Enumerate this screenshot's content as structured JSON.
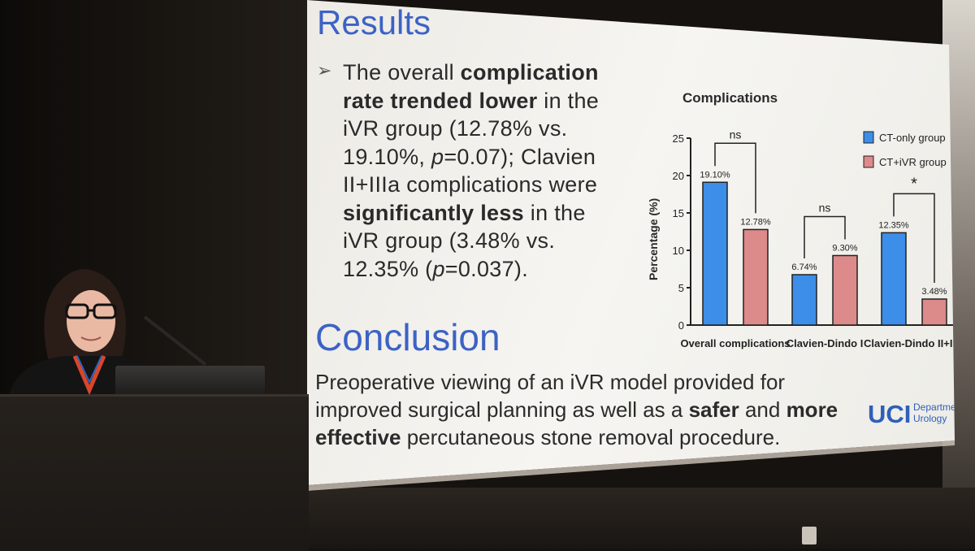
{
  "slide": {
    "results_heading": "Results",
    "bullet_symbol": "➢",
    "bullet_lines": [
      [
        {
          "t": "The overall ",
          "b": false
        },
        {
          "t": "complication",
          "b": true
        }
      ],
      [
        {
          "t": "rate trended lower",
          "b": true
        },
        {
          "t": " in the",
          "b": false
        }
      ],
      [
        {
          "t": "iVR  group  (12.78%  vs.",
          "b": false
        }
      ],
      [
        {
          "t": "19.10%,  ",
          "b": false
        },
        {
          "t": "p",
          "b": false,
          "i": true
        },
        {
          "t": "=0.07);  Clavien",
          "b": false
        }
      ],
      [
        {
          "t": "II+IIIa  complications  were",
          "b": false
        }
      ],
      [
        {
          "t": "significantly less",
          "b": true
        },
        {
          "t": "  in  the",
          "b": false
        }
      ],
      [
        {
          "t": "iVR  group  (3.48%  vs.",
          "b": false
        }
      ],
      [
        {
          "t": "12.35% (",
          "b": false
        },
        {
          "t": "p",
          "b": false,
          "i": true
        },
        {
          "t": "=0.037).",
          "b": false
        }
      ]
    ],
    "conclusion_heading": "Conclusion",
    "conclusion_lines": [
      [
        {
          "t": "Preoperative  viewing  of  an  iVR  model  provided  for",
          "b": false
        }
      ],
      [
        {
          "t": "improved surgical planning as well as a ",
          "b": false
        },
        {
          "t": "safer",
          "b": true
        },
        {
          "t": " and ",
          "b": false
        },
        {
          "t": "more",
          "b": true
        }
      ],
      [
        {
          "t": "effective",
          "b": true
        },
        {
          "t": " percutaneous stone removal procedure.",
          "b": false
        }
      ]
    ],
    "logo": {
      "mark": "UCI",
      "dept_line1": "Department of",
      "dept_line2": "Urology"
    }
  },
  "chart_data": {
    "type": "bar",
    "title": "Complications",
    "ylabel": "Percentage (%)",
    "ylim": [
      0,
      25
    ],
    "yticks": [
      0,
      5,
      10,
      15,
      20,
      25
    ],
    "categories": [
      "Overall complications",
      "Clavien-Dindo I",
      "Clavien-Dindo II+IIIa"
    ],
    "series": [
      {
        "name": "CT-only group",
        "color": "#3d8ee8",
        "values": [
          19.1,
          6.74,
          12.35
        ],
        "labels": [
          "19.10%",
          "6.74%",
          "12.35%"
        ]
      },
      {
        "name": "CT+iVR group",
        "color": "#dc8a8a",
        "values": [
          12.78,
          9.3,
          3.48
        ],
        "labels": [
          "12.78%",
          "9.30%",
          "3.48%"
        ]
      }
    ],
    "significance": [
      "ns",
      "ns",
      "*"
    ],
    "legend_position": "top-right",
    "grid": false
  },
  "colors": {
    "heading": "#3c62c6",
    "logo": "#2f5fb8"
  }
}
